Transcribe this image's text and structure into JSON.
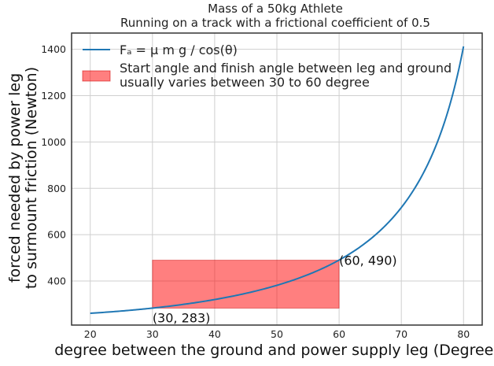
{
  "chart_data": {
    "type": "line",
    "title": "Mass of a 50kg Athlete",
    "subtitle": "Running on a track with a frictional coefficient of 0.5",
    "xlabel": "degree between the ground and power supply leg (Degree)",
    "ylabel_line1": "forced needed by power leg",
    "ylabel_line2": "to surmount friction (Newton)",
    "xlim": [
      17,
      83
    ],
    "ylim": [
      210,
      1470
    ],
    "xticks": [
      20,
      30,
      40,
      50,
      60,
      70,
      80
    ],
    "yticks": [
      400,
      600,
      800,
      1000,
      1200,
      1400
    ],
    "grid": true,
    "legend_position": "top-left",
    "series": [
      {
        "name": "Fₐ = μ m g / cos(θ)",
        "color": "#1f77b4",
        "x": [
          20,
          24,
          28,
          32,
          36,
          40,
          44,
          48,
          52,
          56,
          60,
          64,
          68,
          72,
          76,
          78,
          80
        ],
        "y": [
          261,
          268,
          278,
          289,
          303,
          320,
          341,
          366,
          398,
          438,
          490,
          559,
          654,
          793,
          1013,
          1178,
          1411
        ]
      }
    ],
    "shaded_region": {
      "label": "Start angle and finish angle between leg and ground",
      "label_line2": "usually varies between 30 to 60 degree",
      "x": [
        30,
        60
      ],
      "y": [
        283,
        490
      ],
      "color": "#ff0000",
      "alpha": 0.5
    },
    "annotations": [
      {
        "text": "(30, 283)",
        "x": 30,
        "y": 283
      },
      {
        "text": "(60, 490)",
        "x": 60,
        "y": 490
      }
    ]
  }
}
